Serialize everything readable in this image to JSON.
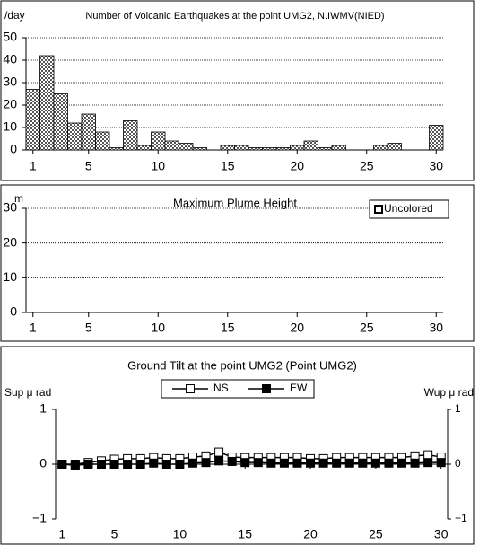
{
  "chart_data": [
    {
      "type": "bar",
      "title": "Number of Volcanic Earthquakes at the point UMG2, N.IWMV(NIED)",
      "ylabel": "/day",
      "x": [
        1,
        2,
        3,
        4,
        5,
        6,
        7,
        8,
        9,
        10,
        11,
        12,
        13,
        14,
        15,
        16,
        17,
        18,
        19,
        20,
        21,
        22,
        23,
        24,
        25,
        26,
        27,
        28,
        29,
        30
      ],
      "values": [
        27,
        42,
        25,
        12,
        16,
        8,
        1,
        13,
        2,
        8,
        4,
        3,
        1,
        0,
        2,
        2,
        1,
        1,
        1,
        2,
        4,
        1,
        2,
        0,
        0,
        2,
        3,
        0,
        0,
        11
      ],
      "color": "#808080",
      "xlim": [
        0.5,
        30.5
      ],
      "xticks": [
        1,
        5,
        10,
        15,
        20,
        25,
        30
      ],
      "ylim": [
        0,
        50
      ],
      "yticks": [
        0,
        10,
        20,
        30,
        40,
        50
      ],
      "grid": true
    },
    {
      "type": "bar",
      "title": "Maximum Plume Height",
      "ylabel": "m",
      "x": [
        1,
        2,
        3,
        4,
        5,
        6,
        7,
        8,
        9,
        10,
        11,
        12,
        13,
        14,
        15,
        16,
        17,
        18,
        19,
        20,
        21,
        22,
        23,
        24,
        25,
        26,
        27,
        28,
        29,
        30
      ],
      "series": [
        {
          "name": "Uncolored",
          "color": "#ffffff",
          "values": [
            null,
            null,
            null,
            null,
            null,
            null,
            null,
            null,
            null,
            null,
            null,
            null,
            null,
            null,
            null,
            null,
            null,
            null,
            null,
            null,
            null,
            null,
            null,
            null,
            null,
            null,
            null,
            null,
            null,
            null
          ]
        }
      ],
      "legend": "upper right",
      "xlim": [
        0.5,
        30.5
      ],
      "xticks": [
        1,
        5,
        10,
        15,
        20,
        25,
        30
      ],
      "ylim": [
        0,
        30
      ],
      "yticks": [
        0,
        10,
        20,
        30
      ],
      "grid": true
    },
    {
      "type": "line",
      "title": "Ground Tilt at the point UMG2 (Point UMG2)",
      "ylabel": "Sup μ rad",
      "y2label": "Wup μ rad",
      "x": [
        1,
        2,
        3,
        4,
        5,
        6,
        7,
        8,
        9,
        10,
        11,
        12,
        13,
        14,
        15,
        16,
        17,
        18,
        19,
        20,
        21,
        22,
        23,
        24,
        25,
        26,
        27,
        28,
        29,
        30
      ],
      "series": [
        {
          "name": "NS",
          "color": "#000000",
          "marker_fill": "#ffffff",
          "values": [
            0,
            0,
            0.03,
            0.06,
            0.09,
            0.1,
            0.1,
            0.12,
            0.1,
            0.1,
            0.13,
            0.15,
            0.22,
            0.13,
            0.12,
            0.12,
            0.12,
            0.12,
            0.12,
            0.1,
            0.1,
            0.12,
            0.12,
            0.12,
            0.12,
            0.12,
            0.12,
            0.15,
            0.17,
            0.13
          ]
        },
        {
          "name": "EW",
          "color": "#000000",
          "marker_fill": "#000000",
          "values": [
            0,
            -0.02,
            0,
            0,
            0,
            0,
            0,
            0.02,
            0,
            0,
            0.02,
            0.03,
            0.06,
            0.05,
            0.03,
            0.03,
            0.02,
            0.02,
            0.02,
            0.02,
            0.02,
            0.02,
            0.02,
            0.02,
            0.02,
            0.02,
            0.02,
            0.02,
            0.03,
            0.03
          ]
        }
      ],
      "legend": "upper center",
      "xlim": [
        0.5,
        30.5
      ],
      "xticks": [
        1,
        5,
        10,
        15,
        20,
        25,
        30
      ],
      "ylim": [
        -1,
        1
      ],
      "yticks": [
        {
          "value": -1,
          "label": "−1"
        },
        0,
        1
      ],
      "y2lim": [
        -1,
        1
      ],
      "y2ticks": [
        {
          "value": -1,
          "label": "−1"
        },
        0,
        1
      ],
      "grid": false
    }
  ]
}
